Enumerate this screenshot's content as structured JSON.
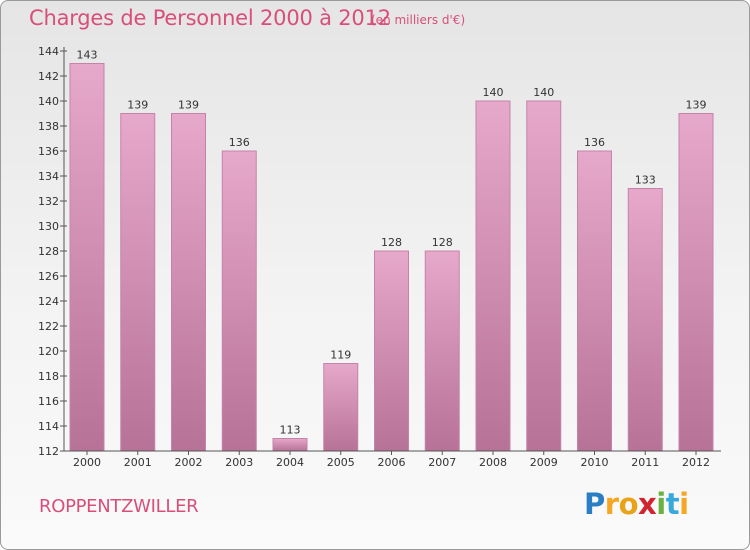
{
  "header": {
    "title": "Charges de Personnel 2000 à 2012",
    "subtitle": "(en milliers d'€)"
  },
  "footer": {
    "commune": "ROPPENTZWILLER",
    "logo_letters": [
      {
        "ch": "P",
        "color": "#2a7fc4"
      },
      {
        "ch": "r",
        "color": "#f5a623"
      },
      {
        "ch": "o",
        "color": "#e8a317"
      },
      {
        "ch": "x",
        "color": "#d0242f"
      },
      {
        "ch": "i",
        "color": "#6ab23e"
      },
      {
        "ch": "t",
        "color": "#39a9dc"
      },
      {
        "ch": "i",
        "color": "#f5a623"
      }
    ]
  },
  "colors": {
    "bar_top": "#e6a8cb",
    "bar_bottom": "#b77297",
    "bar_edge": "#c583a8",
    "axis": "#555555",
    "grid_tick": "#555555"
  },
  "chart_data": {
    "type": "bar",
    "title": "Charges de Personnel 2000 à 2012",
    "categories": [
      "2000",
      "2001",
      "2002",
      "2003",
      "2004",
      "2005",
      "2006",
      "2007",
      "2008",
      "2009",
      "2010",
      "2011",
      "2012"
    ],
    "values": [
      143,
      139,
      139,
      136,
      113,
      119,
      128,
      128,
      140,
      140,
      136,
      133,
      139
    ],
    "ylim": [
      112,
      144
    ],
    "yticks": [
      112,
      114,
      116,
      118,
      120,
      122,
      124,
      126,
      128,
      130,
      132,
      134,
      136,
      138,
      140,
      142,
      144
    ],
    "grid": false,
    "legend": "none"
  }
}
